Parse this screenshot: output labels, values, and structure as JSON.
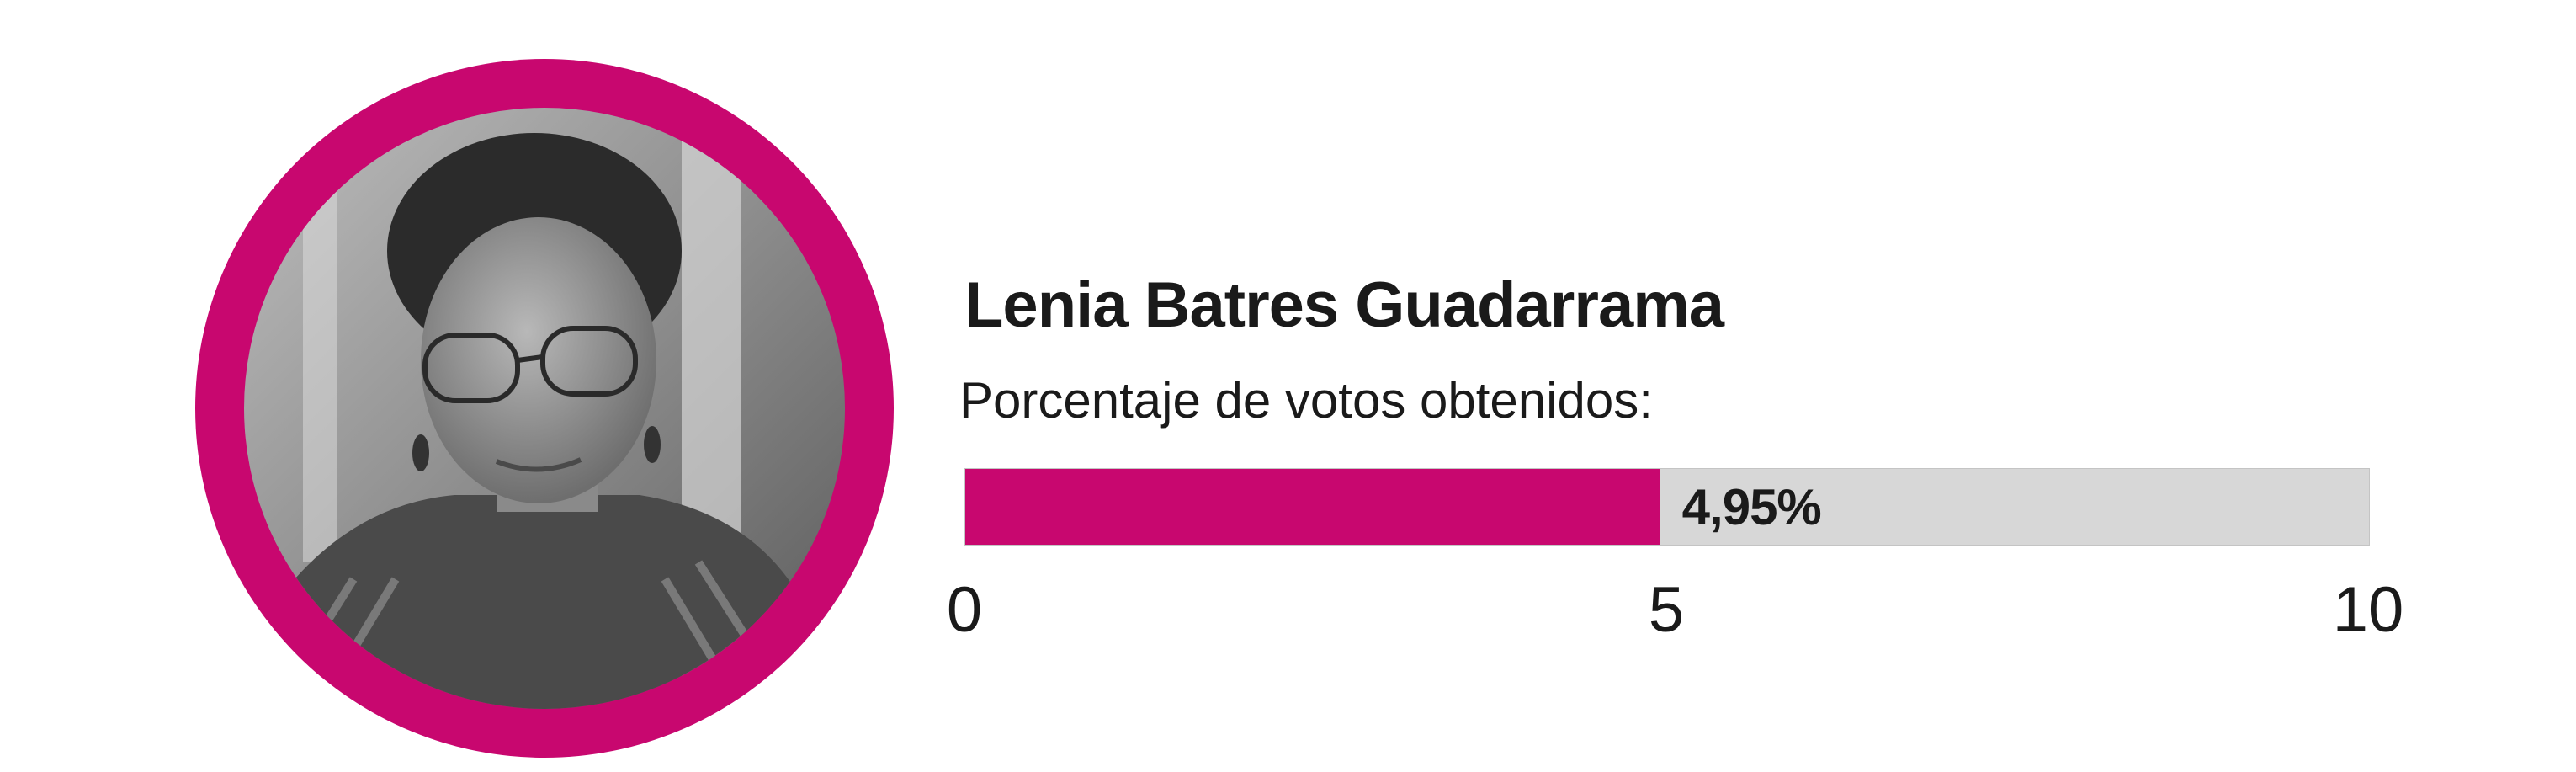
{
  "candidate": {
    "name": "Lenia Batres Guadarrama",
    "photo_icon": "candidate-portrait-photo"
  },
  "colors": {
    "accent": "#c8076f",
    "track": "#d7d7d7",
    "text": "#1a1a1a"
  },
  "chart_data": {
    "type": "bar",
    "title": "Lenia Batres Guadarrama",
    "subtitle": "Porcentaje de votos obtenidos:",
    "categories": [
      "Lenia Batres Guadarrama"
    ],
    "values": [
      4.95
    ],
    "value_label": "4,95%",
    "xlim": [
      0,
      10
    ],
    "ticks": [
      "0",
      "5",
      "10"
    ],
    "tick_values": [
      0,
      5,
      10
    ],
    "grid": false
  }
}
